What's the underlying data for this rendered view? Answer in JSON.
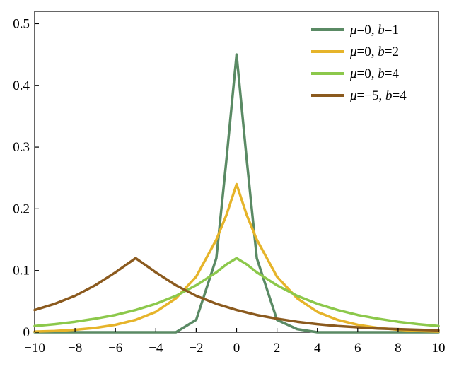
{
  "chart_data": {
    "type": "line",
    "title": "",
    "xlabel": "",
    "ylabel": "",
    "xlim": [
      -10,
      10
    ],
    "ylim": [
      0,
      0.52
    ],
    "grid": false,
    "legend_position": "top-right",
    "x_ticks": [
      -10,
      -8,
      -6,
      -4,
      -2,
      0,
      2,
      4,
      6,
      8,
      10
    ],
    "x_tick_labels": [
      "−10",
      "−8",
      "−6",
      "−4",
      "−2",
      "0",
      "2",
      "4",
      "6",
      "8",
      "10"
    ],
    "y_ticks": [
      0,
      0.1,
      0.2,
      0.3,
      0.4,
      0.5
    ],
    "y_tick_labels": [
      "0",
      "0.1",
      "0.2",
      "0.3",
      "0.4",
      "0.5"
    ],
    "x": [
      -10,
      -9,
      -8,
      -7,
      -6,
      -5,
      -4,
      -3,
      -2,
      -1,
      -0.5,
      0,
      0.5,
      1,
      2,
      3,
      4,
      5,
      6,
      7,
      8,
      9,
      10
    ],
    "series": [
      {
        "name": "μ=0, b=1",
        "name_parts": [
          "μ",
          "=0, ",
          "b",
          "=1"
        ],
        "color": "#5a8a64",
        "values": [
          0.0,
          0.0,
          0.0,
          0.0,
          0.0,
          0.0,
          0.0,
          0.0,
          0.02,
          0.12,
          0.28,
          0.45,
          0.28,
          0.12,
          0.02,
          0.005,
          0.0,
          0.0,
          0.0,
          0.0,
          0.0,
          0.0,
          0.0
        ]
      },
      {
        "name": "μ=0, b=2",
        "name_parts": [
          "μ",
          "=0, ",
          "b",
          "=2"
        ],
        "color": "#e6b42a",
        "values": [
          0.001,
          0.002,
          0.004,
          0.007,
          0.012,
          0.02,
          0.033,
          0.055,
          0.09,
          0.15,
          0.19,
          0.24,
          0.19,
          0.15,
          0.09,
          0.055,
          0.033,
          0.02,
          0.012,
          0.007,
          0.004,
          0.002,
          0.001
        ]
      },
      {
        "name": "μ=0, b=4",
        "name_parts": [
          "μ",
          "=0, ",
          "b",
          "=4"
        ],
        "color": "#8cc84b",
        "values": [
          0.01,
          0.013,
          0.017,
          0.022,
          0.028,
          0.036,
          0.046,
          0.059,
          0.076,
          0.097,
          0.11,
          0.12,
          0.11,
          0.097,
          0.076,
          0.059,
          0.046,
          0.036,
          0.028,
          0.022,
          0.017,
          0.013,
          0.01
        ]
      },
      {
        "name": "μ=−5, b=4",
        "name_parts": [
          "μ",
          "=−5, ",
          "b",
          "=4"
        ],
        "color": "#8b5a1e",
        "x": [
          -10,
          -9,
          -8,
          -7,
          -6,
          -5,
          -4,
          -3,
          -2,
          -1,
          0,
          1,
          2,
          3,
          4,
          5,
          6,
          7,
          8,
          9,
          10
        ],
        "values": [
          0.036,
          0.046,
          0.059,
          0.076,
          0.097,
          0.12,
          0.097,
          0.076,
          0.059,
          0.046,
          0.036,
          0.028,
          0.022,
          0.017,
          0.013,
          0.01,
          0.008,
          0.006,
          0.005,
          0.004,
          0.003
        ]
      }
    ]
  }
}
